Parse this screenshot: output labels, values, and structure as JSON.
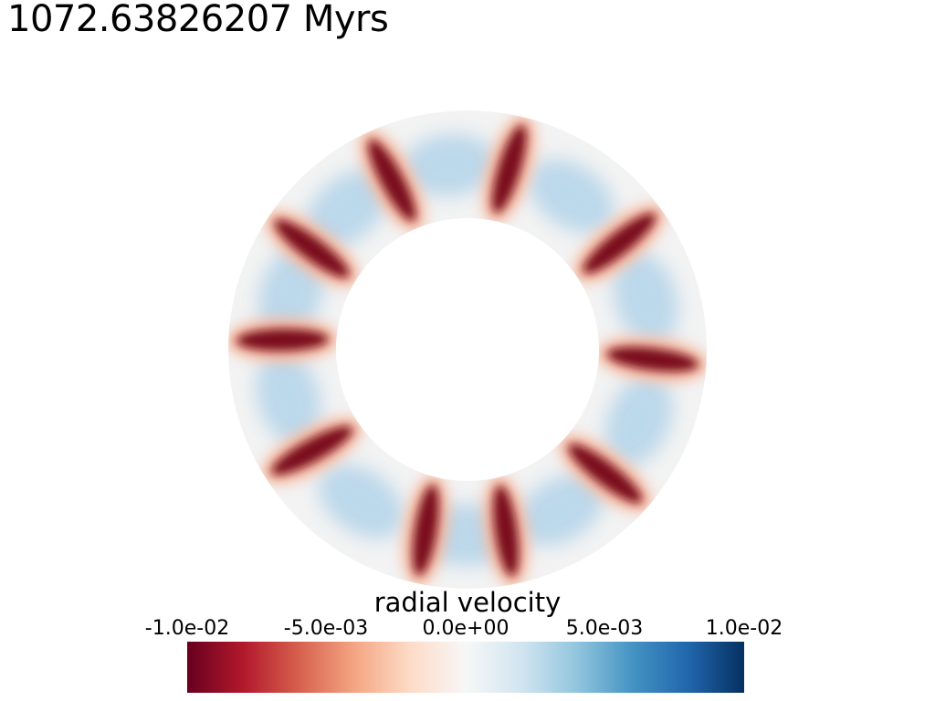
{
  "time_label": "1072.63826207 Myrs",
  "colorbar": {
    "title": "radial velocity",
    "ticks": [
      "-1.0e-02",
      "-5.0e-03",
      "0.0e+00",
      "5.0e-03",
      "1.0e-02"
    ],
    "range": [
      -0.01,
      0.01
    ],
    "colormap": [
      "#67001f",
      "#b2182b",
      "#d6604d",
      "#f4a582",
      "#fddbc7",
      "#f7f7f7",
      "#d1e5f0",
      "#92c5de",
      "#4393c3",
      "#2166ac",
      "#053061"
    ]
  },
  "plume_colors": {
    "downwelling": "#7a0c1f",
    "upwelling_light": "#b8d6ea",
    "background": "#f2f2f2"
  }
}
